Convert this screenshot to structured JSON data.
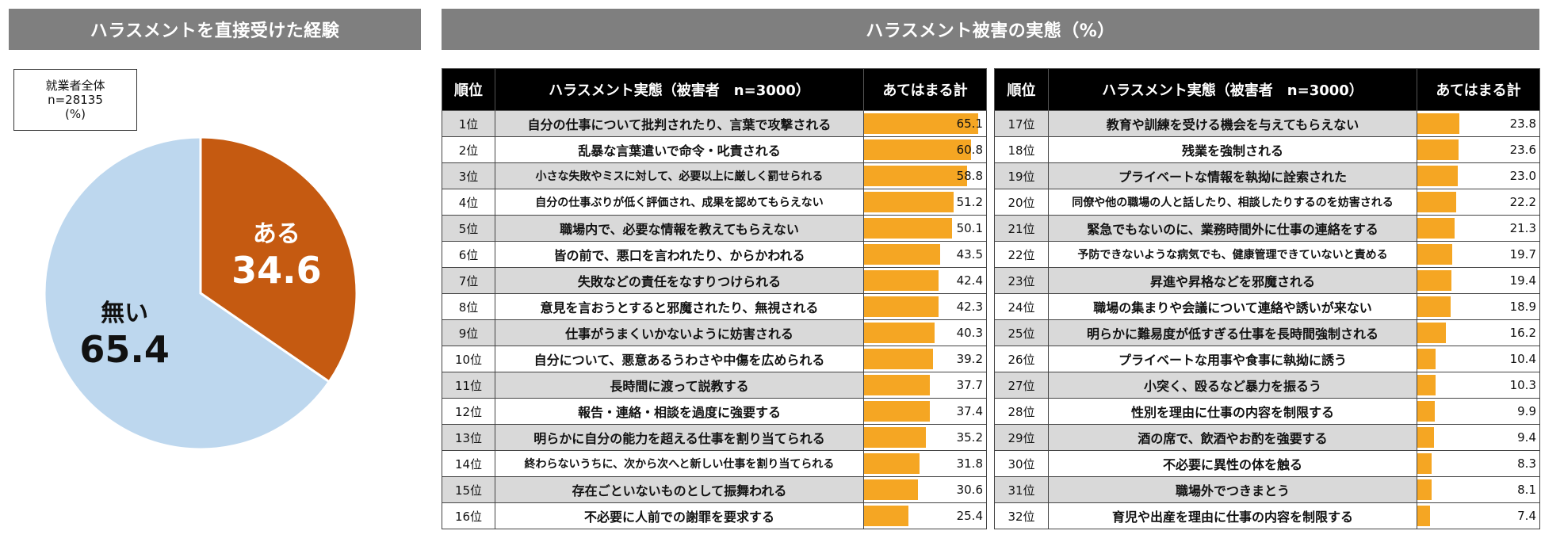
{
  "titles": {
    "left": "ハラスメントを直接受けた経験",
    "right": "ハラスメント被害の実態（%）"
  },
  "legend": {
    "line1": "就業者全体",
    "line2": "n=28135",
    "line3": "(%)"
  },
  "table_headers": {
    "rank": "順位",
    "desc": "ハラスメント実態（被害者　n=3000）",
    "value": "あてはまる計"
  },
  "chart_data": [
    {
      "type": "pie",
      "title": "ハラスメントを直接受けた経験",
      "slices": [
        {
          "label": "ある",
          "value": 34.6,
          "color": "#c55a11"
        },
        {
          "label": "無い",
          "value": 65.4,
          "color": "#bdd7ee"
        }
      ]
    },
    {
      "type": "bar",
      "title": "ハラスメント被害の実態（%）",
      "bar_color": "#f5a623",
      "rows": [
        {
          "rank": "1位",
          "label": "自分の仕事について批判されたり、言葉で攻撃される",
          "value": 65.1
        },
        {
          "rank": "2位",
          "label": "乱暴な言葉遣いで命令・叱責される",
          "value": 60.8
        },
        {
          "rank": "3位",
          "label": "小さな失敗やミスに対して、必要以上に厳しく罰せられる",
          "value": 58.8
        },
        {
          "rank": "4位",
          "label": "自分の仕事ぶりが低く評価され、成果を認めてもらえない",
          "value": 51.2
        },
        {
          "rank": "5位",
          "label": "職場内で、必要な情報を教えてもらえない",
          "value": 50.1
        },
        {
          "rank": "6位",
          "label": "皆の前で、悪口を言われたり、からかわれる",
          "value": 43.5
        },
        {
          "rank": "7位",
          "label": "失敗などの責任をなすりつけられる",
          "value": 42.4
        },
        {
          "rank": "8位",
          "label": "意見を言おうとすると邪魔されたり、無視される",
          "value": 42.3
        },
        {
          "rank": "9位",
          "label": "仕事がうまくいかないように妨害される",
          "value": 40.3
        },
        {
          "rank": "10位",
          "label": "自分について、悪意あるうわさや中傷を広められる",
          "value": 39.2
        },
        {
          "rank": "11位",
          "label": "長時間に渡って説教する",
          "value": 37.7
        },
        {
          "rank": "12位",
          "label": "報告・連絡・相談を過度に強要する",
          "value": 37.4
        },
        {
          "rank": "13位",
          "label": "明らかに自分の能力を超える仕事を割り当てられる",
          "value": 35.2
        },
        {
          "rank": "14位",
          "label": "終わらないうちに、次から次へと新しい仕事を割り当てられる",
          "value": 31.8
        },
        {
          "rank": "15位",
          "label": "存在ごといないものとして振舞われる",
          "value": 30.6
        },
        {
          "rank": "16位",
          "label": "不必要に人前での謝罪を要求する",
          "value": 25.4
        },
        {
          "rank": "17位",
          "label": "教育や訓練を受ける機会を与えてもらえない",
          "value": 23.8
        },
        {
          "rank": "18位",
          "label": "残業を強制される",
          "value": 23.6
        },
        {
          "rank": "19位",
          "label": "プライベートな情報を執拗に詮索された",
          "value": 23.0
        },
        {
          "rank": "20位",
          "label": "同僚や他の職場の人と話したり、相談したりするのを妨害される",
          "value": 22.2
        },
        {
          "rank": "21位",
          "label": "緊急でもないのに、業務時間外に仕事の連絡をする",
          "value": 21.3
        },
        {
          "rank": "22位",
          "label": "予防できないような病気でも、健康管理できていないと責める",
          "value": 19.7
        },
        {
          "rank": "23位",
          "label": "昇進や昇格などを邪魔される",
          "value": 19.4
        },
        {
          "rank": "24位",
          "label": "職場の集まりや会議について連絡や誘いが来ない",
          "value": 18.9
        },
        {
          "rank": "25位",
          "label": "明らかに難易度が低すぎる仕事を長時間強制される",
          "value": 16.2
        },
        {
          "rank": "26位",
          "label": "プライベートな用事や食事に執拗に誘う",
          "value": 10.4
        },
        {
          "rank": "27位",
          "label": "小突く、殴るなど暴力を振るう",
          "value": 10.3
        },
        {
          "rank": "28位",
          "label": "性別を理由に仕事の内容を制限する",
          "value": 9.9
        },
        {
          "rank": "29位",
          "label": "酒の席で、飲酒やお酌を強要する",
          "value": 9.4
        },
        {
          "rank": "30位",
          "label": "不必要に異性の体を触る",
          "value": 8.3
        },
        {
          "rank": "31位",
          "label": "職場外でつきまとう",
          "value": 8.1
        },
        {
          "rank": "32位",
          "label": "育児や出産を理由に仕事の内容を制限する",
          "value": 7.4
        }
      ]
    }
  ]
}
